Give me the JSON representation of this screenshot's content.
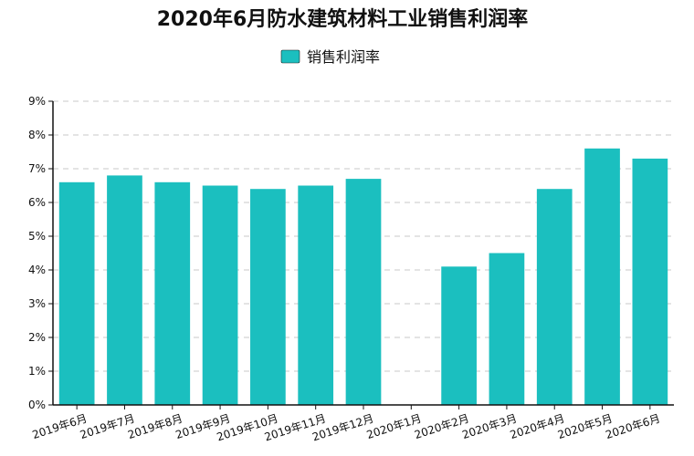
{
  "chart_data": {
    "type": "bar",
    "title": "2020年6月防水建筑材料工业销售利润率",
    "xlabel": "",
    "ylabel": "",
    "categories": [
      "2019年6月",
      "2019年7月",
      "2019年8月",
      "2019年9月",
      "2019年10月",
      "2019年11月",
      "2019年12月",
      "2020年1月",
      "2020年2月",
      "2020年3月",
      "2020年4月",
      "2020年5月",
      "2020年6月"
    ],
    "series": [
      {
        "name": "销售利润率",
        "values": [
          6.6,
          6.8,
          6.6,
          6.5,
          6.4,
          6.5,
          6.7,
          null,
          4.1,
          4.5,
          6.4,
          7.6,
          7.3
        ]
      }
    ],
    "ylim": [
      0,
      9
    ],
    "y_ticks": [
      "0%",
      "1%",
      "2%",
      "3%",
      "4%",
      "5%",
      "6%",
      "7%",
      "8%",
      "9%"
    ],
    "grid": true,
    "legend": "top-center"
  },
  "colors": {
    "bar": "#1bbfbf",
    "axis": "#111111",
    "grid": "#c8c8c8"
  }
}
